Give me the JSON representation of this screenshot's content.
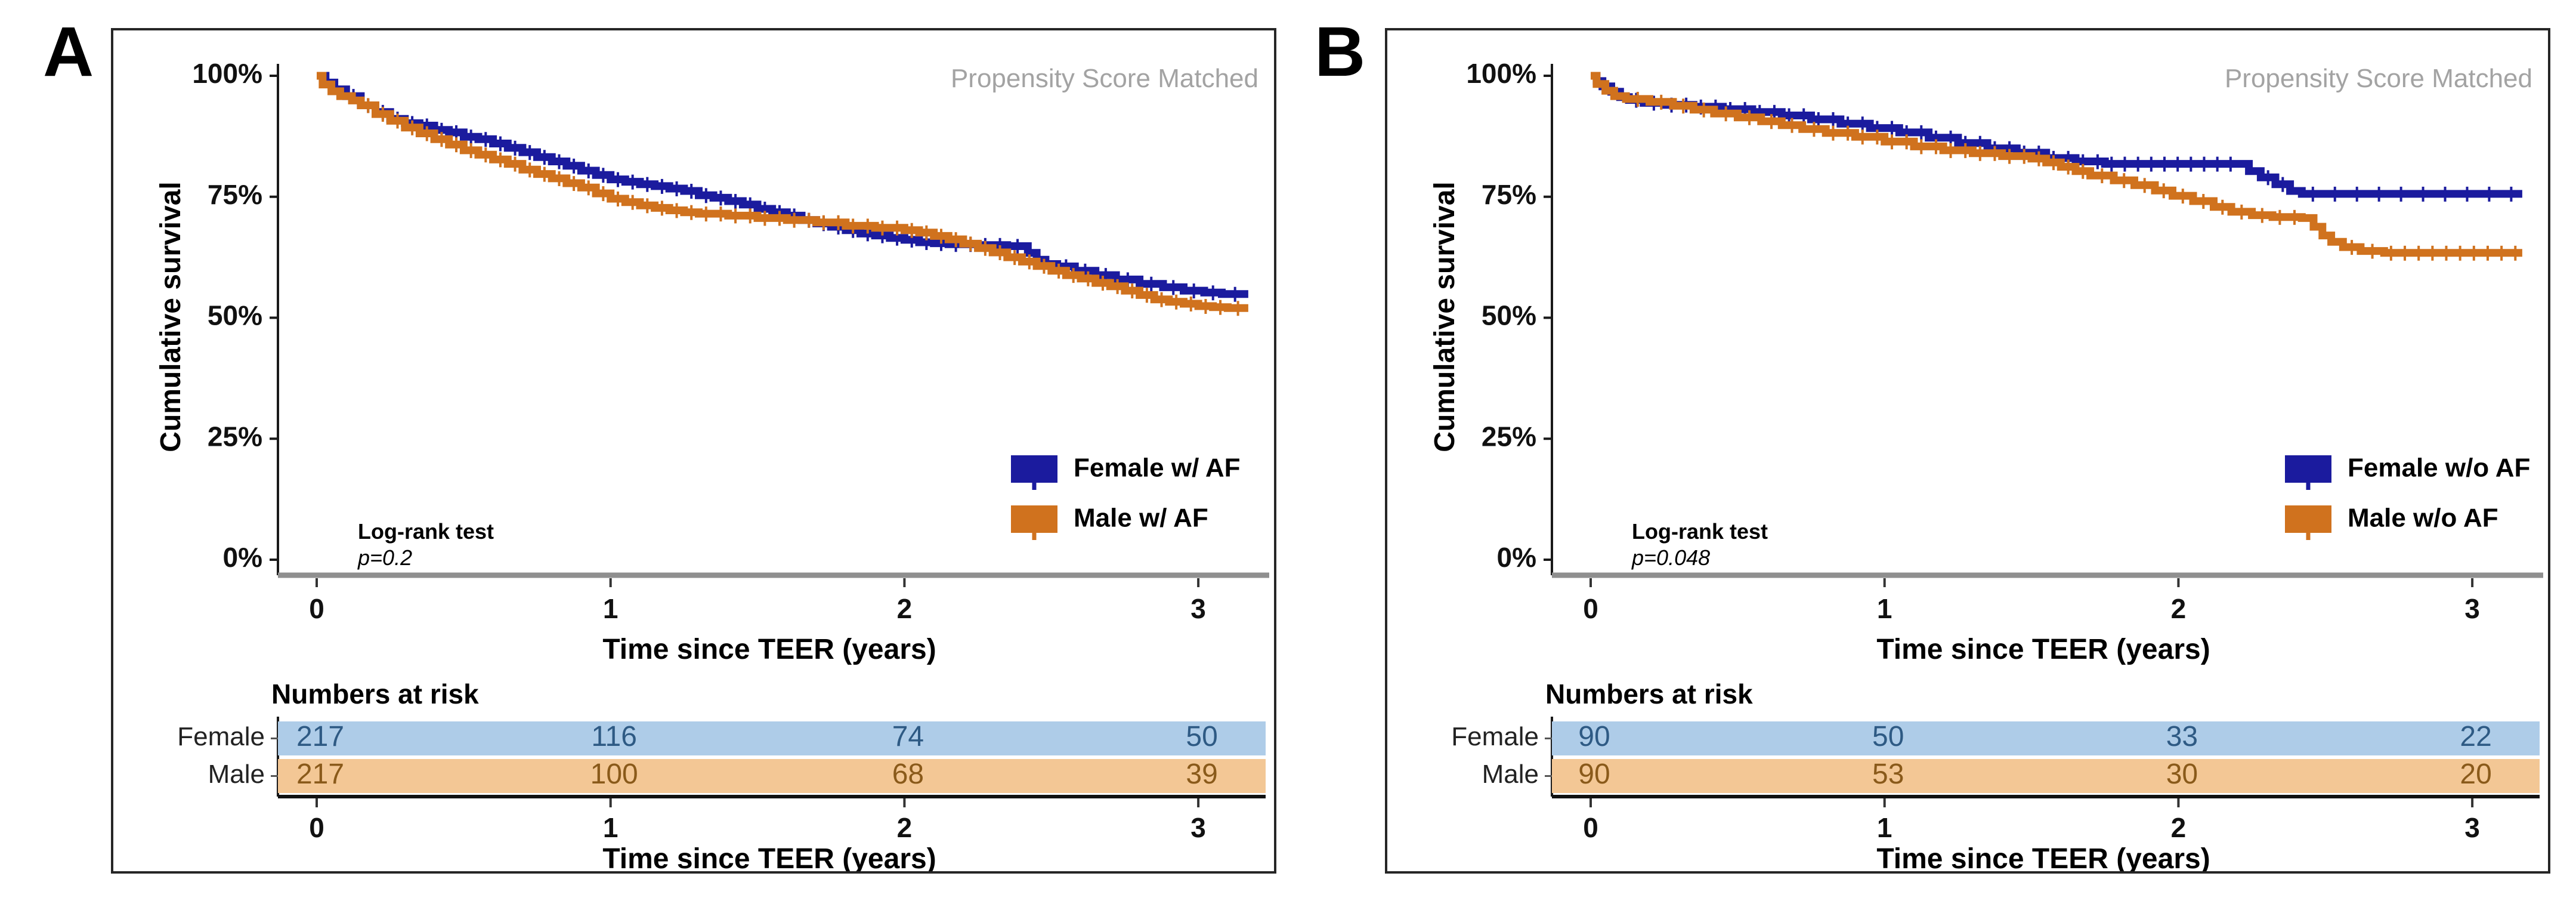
{
  "figure": {
    "watermark": "Propensity Score Matched",
    "ylabel": "Cumulative survival",
    "xlabel": "Time since TEER (years)",
    "risk_xlabel": "Time since TEER (years)",
    "y_ticks": [
      "100%",
      "75%",
      "50%",
      "25%",
      "0%"
    ],
    "x_ticks": [
      "0",
      "1",
      "2",
      "3"
    ],
    "risk_x_ticks": [
      "0",
      "1",
      "2",
      "3"
    ],
    "risk_header": "Numbers at risk",
    "logrank_label": "Log-rank test",
    "colors": {
      "female_curve": "#1b1b9e",
      "male_curve": "#d0721e",
      "female_band": "#aecce8",
      "male_band": "#f3c795",
      "female_risk_text": "#2e5a84",
      "male_risk_text": "#8a5a1a",
      "watermark_gray": "#a3a3a3",
      "axis_line_gray": "#8f8f8f"
    }
  },
  "panels": [
    {
      "panel_label": "A",
      "p_value": "p=0.2",
      "legend": [
        {
          "label": "Female w/ AF",
          "color": "#1b1b9e"
        },
        {
          "label": "Male w/ AF",
          "color": "#d0721e"
        }
      ],
      "risk_table": {
        "rows": [
          {
            "label": "Female",
            "values": [
              "217",
              "116",
              "74",
              "50"
            ]
          },
          {
            "label": "Male",
            "values": [
              "217",
              "100",
              "68",
              "39"
            ]
          }
        ]
      },
      "chart_data": {
        "type": "line",
        "subtype": "kaplan-meier-step",
        "title": "Propensity Score Matched",
        "xlabel": "Time since TEER (years)",
        "ylabel": "Cumulative survival",
        "xlim": [
          0,
          3.2
        ],
        "ylim": [
          0,
          100
        ],
        "x_ticks": [
          0,
          1,
          2,
          3
        ],
        "y_ticks_pct": [
          0,
          25,
          50,
          75,
          100
        ],
        "legend_position": "right-center",
        "annotation": {
          "test": "Log-rank test",
          "p": "p=0.2"
        },
        "series": [
          {
            "name": "Female w/ AF",
            "color": "#1b1b9e",
            "points": [
              [
                0,
                100
              ],
              [
                0.03,
                98.6
              ],
              [
                0.06,
                97.2
              ],
              [
                0.1,
                95.8
              ],
              [
                0.15,
                93.9
              ],
              [
                0.2,
                92.5
              ],
              [
                0.25,
                91.1
              ],
              [
                0.3,
                90.2
              ],
              [
                0.35,
                89.7
              ],
              [
                0.4,
                88.8
              ],
              [
                0.45,
                88.3
              ],
              [
                0.5,
                87.4
              ],
              [
                0.55,
                86.9
              ],
              [
                0.6,
                86.0
              ],
              [
                0.65,
                85.1
              ],
              [
                0.7,
                84.2
              ],
              [
                0.75,
                83.2
              ],
              [
                0.8,
                82.3
              ],
              [
                0.85,
                81.4
              ],
              [
                0.9,
                80.4
              ],
              [
                0.95,
                79.5
              ],
              [
                1.0,
                78.6
              ],
              [
                1.05,
                78.1
              ],
              [
                1.1,
                77.6
              ],
              [
                1.15,
                77.2
              ],
              [
                1.2,
                76.7
              ],
              [
                1.25,
                76.2
              ],
              [
                1.3,
                75.3
              ],
              [
                1.35,
                74.8
              ],
              [
                1.4,
                74.1
              ],
              [
                1.45,
                73.4
              ],
              [
                1.5,
                72.5
              ],
              [
                1.55,
                71.8
              ],
              [
                1.6,
                71.1
              ],
              [
                1.65,
                70.2
              ],
              [
                1.7,
                69.5
              ],
              [
                1.75,
                68.8
              ],
              [
                1.8,
                68.1
              ],
              [
                1.85,
                67.4
              ],
              [
                1.9,
                67.0
              ],
              [
                1.95,
                66.5
              ],
              [
                2.0,
                66.1
              ],
              [
                2.05,
                65.6
              ],
              [
                2.1,
                65.4
              ],
              [
                2.15,
                65.2
              ],
              [
                2.25,
                65.0
              ],
              [
                2.35,
                64.8
              ],
              [
                2.42,
                63.4
              ],
              [
                2.45,
                62.0
              ],
              [
                2.48,
                61.1
              ],
              [
                2.52,
                60.6
              ],
              [
                2.58,
                59.7
              ],
              [
                2.65,
                58.8
              ],
              [
                2.72,
                57.9
              ],
              [
                2.8,
                57.0
              ],
              [
                2.88,
                56.3
              ],
              [
                2.95,
                55.6
              ],
              [
                3.02,
                55.2
              ],
              [
                3.08,
                54.9
              ],
              [
                3.17,
                54.9
              ]
            ]
          },
          {
            "name": "Male w/ AF",
            "color": "#d0721e",
            "points": [
              [
                0,
                100
              ],
              [
                0.02,
                98.2
              ],
              [
                0.05,
                96.8
              ],
              [
                0.08,
                95.8
              ],
              [
                0.12,
                94.9
              ],
              [
                0.15,
                93.9
              ],
              [
                0.2,
                92.1
              ],
              [
                0.25,
                90.7
              ],
              [
                0.3,
                89.3
              ],
              [
                0.35,
                88.1
              ],
              [
                0.4,
                86.9
              ],
              [
                0.45,
                85.8
              ],
              [
                0.5,
                84.6
              ],
              [
                0.55,
                83.7
              ],
              [
                0.6,
                82.7
              ],
              [
                0.65,
                81.8
              ],
              [
                0.7,
                80.6
              ],
              [
                0.75,
                79.7
              ],
              [
                0.8,
                78.8
              ],
              [
                0.85,
                77.8
              ],
              [
                0.9,
                76.9
              ],
              [
                0.95,
                75.7
              ],
              [
                1.0,
                74.6
              ],
              [
                1.05,
                73.9
              ],
              [
                1.1,
                73.2
              ],
              [
                1.15,
                72.7
              ],
              [
                1.2,
                72.2
              ],
              [
                1.25,
                71.8
              ],
              [
                1.3,
                71.5
              ],
              [
                1.4,
                71.1
              ],
              [
                1.5,
                70.6
              ],
              [
                1.6,
                70.2
              ],
              [
                1.7,
                69.7
              ],
              [
                1.8,
                69.0
              ],
              [
                1.9,
                68.6
              ],
              [
                2.0,
                68.1
              ],
              [
                2.05,
                67.6
              ],
              [
                2.1,
                66.9
              ],
              [
                2.15,
                66.2
              ],
              [
                2.2,
                65.3
              ],
              [
                2.25,
                64.4
              ],
              [
                2.3,
                63.5
              ],
              [
                2.35,
                62.5
              ],
              [
                2.4,
                61.6
              ],
              [
                2.45,
                60.7
              ],
              [
                2.5,
                59.7
              ],
              [
                2.55,
                58.8
              ],
              [
                2.6,
                58.1
              ],
              [
                2.65,
                57.2
              ],
              [
                2.7,
                56.5
              ],
              [
                2.75,
                55.6
              ],
              [
                2.8,
                54.7
              ],
              [
                2.85,
                53.8
              ],
              [
                2.9,
                53.3
              ],
              [
                2.95,
                52.9
              ],
              [
                3.0,
                52.4
              ],
              [
                3.05,
                52.2
              ],
              [
                3.1,
                52.0
              ],
              [
                3.17,
                52.0
              ]
            ]
          }
        ],
        "numbers_at_risk": {
          "times": [
            0,
            1,
            2,
            3
          ],
          "Female": [
            217,
            116,
            74,
            50
          ],
          "Male": [
            217,
            100,
            68,
            39
          ]
        }
      }
    },
    {
      "panel_label": "B",
      "p_value": "p=0.048",
      "legend": [
        {
          "label": "Female w/o AF",
          "color": "#1b1b9e"
        },
        {
          "label": "Male w/o AF",
          "color": "#d0721e"
        }
      ],
      "risk_table": {
        "rows": [
          {
            "label": "Female",
            "values": [
              "90",
              "50",
              "33",
              "22"
            ]
          },
          {
            "label": "Male",
            "values": [
              "90",
              "53",
              "30",
              "20"
            ]
          }
        ]
      },
      "chart_data": {
        "type": "line",
        "subtype": "kaplan-meier-step",
        "title": "Propensity Score Matched",
        "xlabel": "Time since TEER (years)",
        "ylabel": "Cumulative survival",
        "xlim": [
          0,
          3.2
        ],
        "ylim": [
          0,
          100
        ],
        "x_ticks": [
          0,
          1,
          2,
          3
        ],
        "y_ticks_pct": [
          0,
          25,
          50,
          75,
          100
        ],
        "legend_position": "right-center",
        "annotation": {
          "test": "Log-rank test",
          "p": "p=0.048"
        },
        "series": [
          {
            "name": "Female w/o AF",
            "color": "#1b1b9e",
            "points": [
              [
                0,
                100
              ],
              [
                0.02,
                98.9
              ],
              [
                0.04,
                97.8
              ],
              [
                0.07,
                96.7
              ],
              [
                0.1,
                95.6
              ],
              [
                0.13,
                95.0
              ],
              [
                0.18,
                94.4
              ],
              [
                0.25,
                94.0
              ],
              [
                0.35,
                93.6
              ],
              [
                0.45,
                93.1
              ],
              [
                0.55,
                92.5
              ],
              [
                0.65,
                91.8
              ],
              [
                0.75,
                91.0
              ],
              [
                0.85,
                90.1
              ],
              [
                0.95,
                89.2
              ],
              [
                1.05,
                88.3
              ],
              [
                1.15,
                87.2
              ],
              [
                1.25,
                86.1
              ],
              [
                1.35,
                85.0
              ],
              [
                1.45,
                84.1
              ],
              [
                1.55,
                83.0
              ],
              [
                1.65,
                82.3
              ],
              [
                1.75,
                81.8
              ],
              [
                2.2,
                81.8
              ],
              [
                2.24,
                80.3
              ],
              [
                2.28,
                79.0
              ],
              [
                2.33,
                77.6
              ],
              [
                2.38,
                76.2
              ],
              [
                2.42,
                75.6
              ],
              [
                3.17,
                75.6
              ]
            ]
          },
          {
            "name": "Male w/o AF",
            "color": "#d0721e",
            "points": [
              [
                0,
                100
              ],
              [
                0.02,
                98.3
              ],
              [
                0.05,
                96.9
              ],
              [
                0.08,
                95.8
              ],
              [
                0.12,
                95.2
              ],
              [
                0.2,
                94.6
              ],
              [
                0.28,
                93.8
              ],
              [
                0.35,
                93.0
              ],
              [
                0.42,
                92.2
              ],
              [
                0.5,
                91.4
              ],
              [
                0.58,
                90.6
              ],
              [
                0.65,
                89.8
              ],
              [
                0.72,
                89.0
              ],
              [
                0.8,
                88.2
              ],
              [
                0.9,
                87.4
              ],
              [
                1.0,
                86.4
              ],
              [
                1.1,
                85.4
              ],
              [
                1.2,
                84.6
              ],
              [
                1.3,
                84.0
              ],
              [
                1.4,
                83.4
              ],
              [
                1.5,
                82.9
              ],
              [
                1.55,
                82.1
              ],
              [
                1.6,
                81.2
              ],
              [
                1.65,
                80.3
              ],
              [
                1.7,
                79.4
              ],
              [
                1.78,
                78.4
              ],
              [
                1.85,
                77.4
              ],
              [
                1.92,
                76.3
              ],
              [
                1.98,
                75.2
              ],
              [
                2.05,
                74.1
              ],
              [
                2.12,
                72.9
              ],
              [
                2.18,
                71.9
              ],
              [
                2.25,
                71.2
              ],
              [
                2.32,
                70.8
              ],
              [
                2.42,
                70.6
              ],
              [
                2.46,
                68.8
              ],
              [
                2.49,
                67.0
              ],
              [
                2.52,
                65.7
              ],
              [
                2.56,
                64.6
              ],
              [
                2.62,
                63.8
              ],
              [
                2.7,
                63.4
              ],
              [
                3.17,
                63.4
              ]
            ]
          }
        ],
        "numbers_at_risk": {
          "times": [
            0,
            1,
            2,
            3
          ],
          "Female": [
            90,
            50,
            33,
            22
          ],
          "Male": [
            90,
            53,
            30,
            20
          ]
        }
      }
    }
  ]
}
